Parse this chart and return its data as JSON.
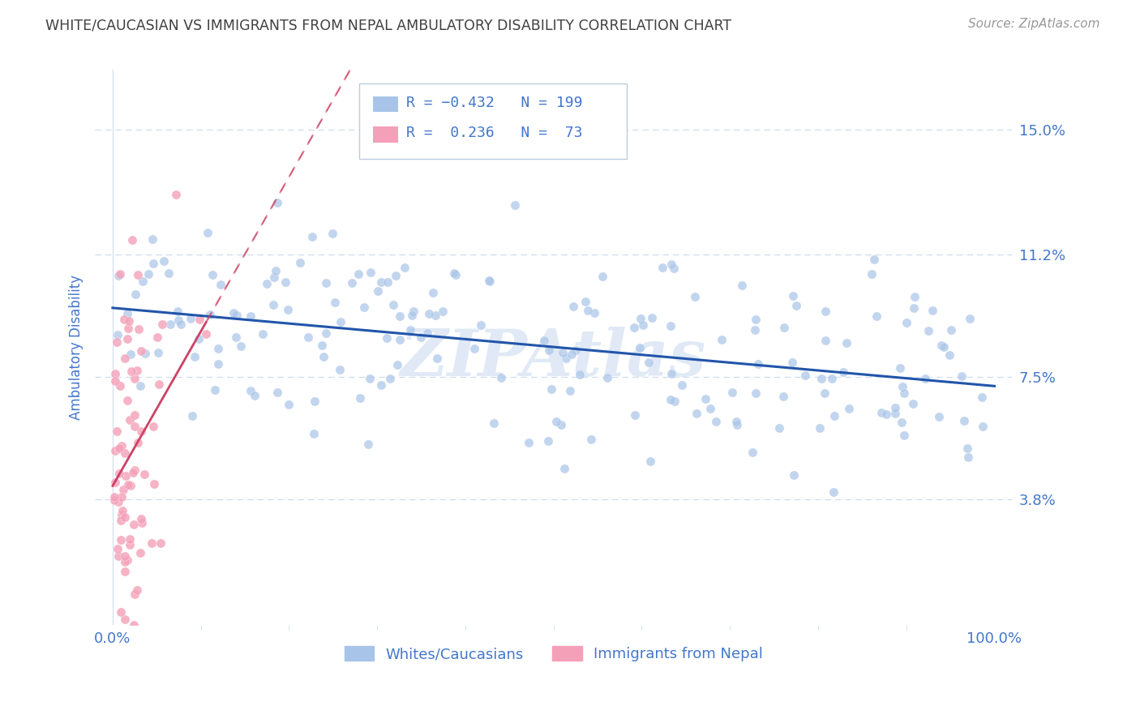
{
  "title": "WHITE/CAUCASIAN VS IMMIGRANTS FROM NEPAL AMBULATORY DISABILITY CORRELATION CHART",
  "source": "Source: ZipAtlas.com",
  "ylabel": "Ambulatory Disability",
  "yticks": [
    0.038,
    0.075,
    0.112,
    0.15
  ],
  "ytick_labels": [
    "3.8%",
    "7.5%",
    "11.2%",
    "15.0%"
  ],
  "xlim": [
    -0.02,
    1.02
  ],
  "ylim": [
    0.0,
    0.168
  ],
  "xtick_labels": [
    "0.0%",
    "100.0%"
  ],
  "xtick_positions": [
    0.0,
    1.0
  ],
  "blue_color": "#a8c4e8",
  "pink_color": "#f4a0b8",
  "blue_line_color": "#2255aa",
  "pink_line_color": "#cc4466",
  "legend_label1": "Whites/Caucasians",
  "legend_label2": "Immigrants from Nepal",
  "watermark": "ZIPAtlas",
  "title_color": "#404040",
  "axis_label_color": "#4477cc",
  "tick_color": "#4477cc",
  "grid_color": "#d0dded",
  "blue_R": -0.432,
  "blue_N": 199,
  "pink_R": 0.236,
  "pink_N": 73,
  "seed_blue": 42,
  "seed_pink": 123
}
